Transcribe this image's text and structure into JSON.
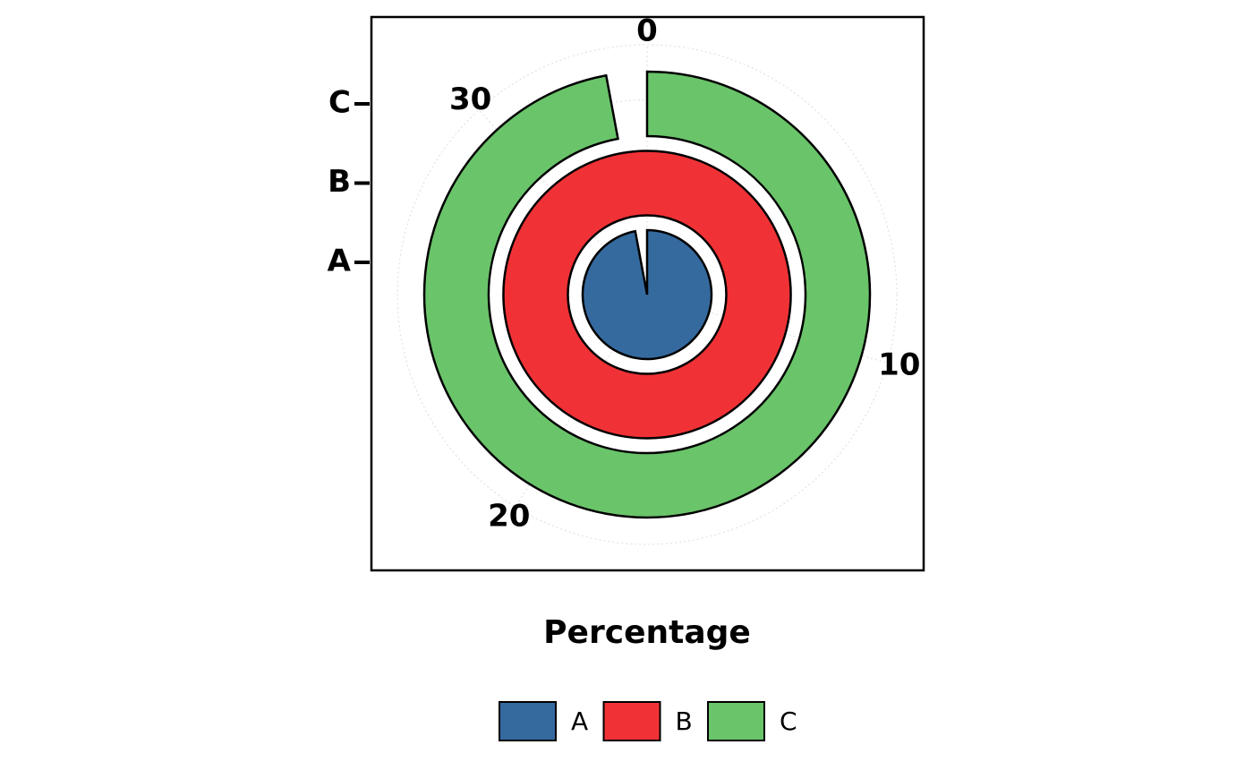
{
  "chart_data": {
    "type": "radial-bar",
    "categories": [
      "A",
      "B",
      "C"
    ],
    "values": [
      33,
      34,
      33
    ],
    "colors": [
      "#356a9f",
      "#f03236",
      "#6ac46a"
    ],
    "xlim": [
      0,
      34
    ],
    "xticks": [
      0,
      10,
      20,
      30
    ],
    "x_label": "Percentage",
    "grid": true,
    "legend": "bottom"
  }
}
